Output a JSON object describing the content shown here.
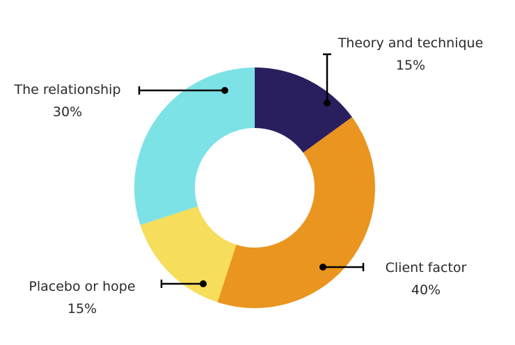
{
  "chart_data": {
    "type": "pie",
    "variant": "donut",
    "title": "",
    "slices": [
      {
        "label": "Theory and technique",
        "value_label": "15%",
        "value": 15,
        "color": "#2a1f5e"
      },
      {
        "label": "Client factor",
        "value_label": "40%",
        "value": 40,
        "color": "#ea951f"
      },
      {
        "label": "Placebo or hope",
        "value_label": "15%",
        "value": 15,
        "color": "#f6dd5b"
      },
      {
        "label": "The relationship",
        "value_label": "30%",
        "value": 30,
        "color": "#7ce2e6"
      }
    ]
  }
}
